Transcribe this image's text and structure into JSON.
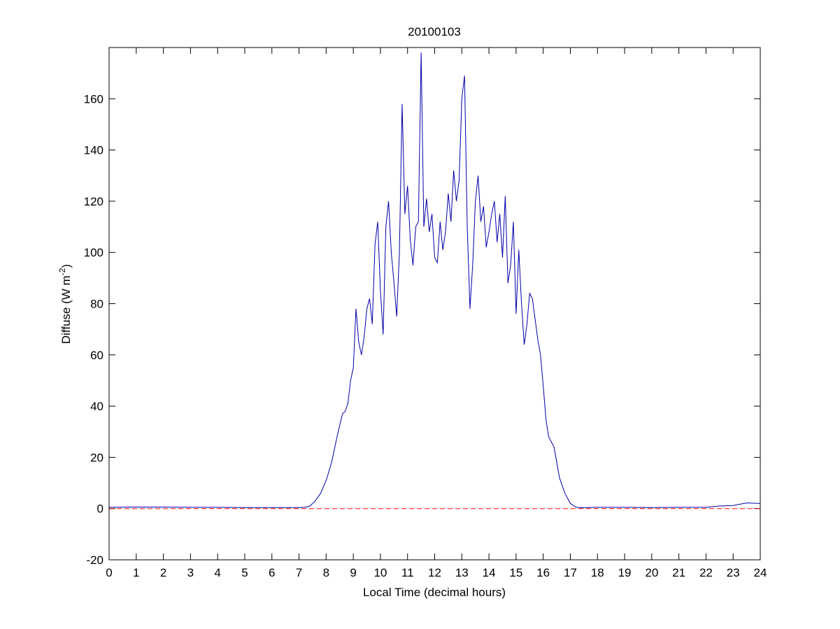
{
  "chart_data": {
    "type": "line",
    "title": "20100103",
    "x_label": "Local Time (decimal hours)",
    "y_label": {
      "text": "Diffuse (W m",
      "superscript": "-2",
      "suffix": ")"
    },
    "xlim": [
      0,
      24
    ],
    "xticks": [
      0,
      1,
      2,
      3,
      4,
      5,
      6,
      7,
      8,
      9,
      10,
      11,
      12,
      13,
      14,
      15,
      16,
      17,
      18,
      19,
      20,
      21,
      22,
      23,
      24
    ],
    "ylim": [
      -20,
      180
    ],
    "yticks": [
      -20,
      0,
      20,
      40,
      60,
      80,
      100,
      120,
      140,
      160
    ],
    "grid": false,
    "reference_line": {
      "y": 0,
      "color": "#ff0000",
      "style": "dashed"
    },
    "series": [
      {
        "color": "#0000aa",
        "x": [
          0,
          1,
          2,
          3,
          4,
          5,
          6,
          7,
          7.2,
          7.4,
          7.6,
          7.8,
          8.0,
          8.2,
          8.4,
          8.6,
          8.7,
          8.8,
          8.9,
          9.0,
          9.1,
          9.2,
          9.3,
          9.4,
          9.5,
          9.6,
          9.7,
          9.8,
          9.9,
          10.0,
          10.1,
          10.2,
          10.3,
          10.4,
          10.5,
          10.6,
          10.7,
          10.8,
          10.9,
          11.0,
          11.1,
          11.2,
          11.3,
          11.4,
          11.5,
          11.6,
          11.7,
          11.8,
          11.9,
          12.0,
          12.1,
          12.2,
          12.3,
          12.4,
          12.5,
          12.6,
          12.7,
          12.8,
          12.9,
          13.0,
          13.1,
          13.2,
          13.3,
          13.4,
          13.5,
          13.6,
          13.7,
          13.8,
          13.9,
          14.0,
          14.1,
          14.2,
          14.3,
          14.4,
          14.5,
          14.6,
          14.7,
          14.8,
          14.9,
          15.0,
          15.1,
          15.2,
          15.3,
          15.4,
          15.5,
          15.6,
          15.7,
          15.8,
          15.9,
          16.0,
          16.1,
          16.2,
          16.4,
          16.5,
          16.6,
          16.8,
          17.0,
          17.2,
          17.4,
          17.6,
          18,
          19,
          20,
          21,
          22,
          22.5,
          23,
          23.5,
          24
        ],
        "values": [
          0.5,
          0.6,
          0.6,
          0.5,
          0.5,
          0.4,
          0.4,
          0.4,
          0.5,
          1,
          3,
          6,
          11,
          18,
          28,
          37,
          38,
          41,
          50,
          55,
          78,
          65,
          60,
          67,
          78,
          82,
          72,
          103,
          112,
          85,
          68,
          110,
          120,
          100,
          88,
          75,
          100,
          158,
          115,
          126,
          105,
          95,
          110,
          112,
          178,
          110,
          121,
          108,
          115,
          98,
          96,
          112,
          101,
          108,
          123,
          112,
          132,
          120,
          128,
          160,
          169,
          110,
          78,
          95,
          120,
          130,
          112,
          118,
          102,
          108,
          115,
          120,
          104,
          115,
          98,
          122,
          88,
          95,
          112,
          76,
          101,
          80,
          64,
          72,
          84,
          82,
          74,
          66,
          60,
          48,
          35,
          28,
          24,
          18,
          12,
          6,
          2,
          0.6,
          0.3,
          0.4,
          0.5,
          0.5,
          0.4,
          0.5,
          0.5,
          1,
          1.2,
          2.2,
          2
        ]
      }
    ]
  }
}
